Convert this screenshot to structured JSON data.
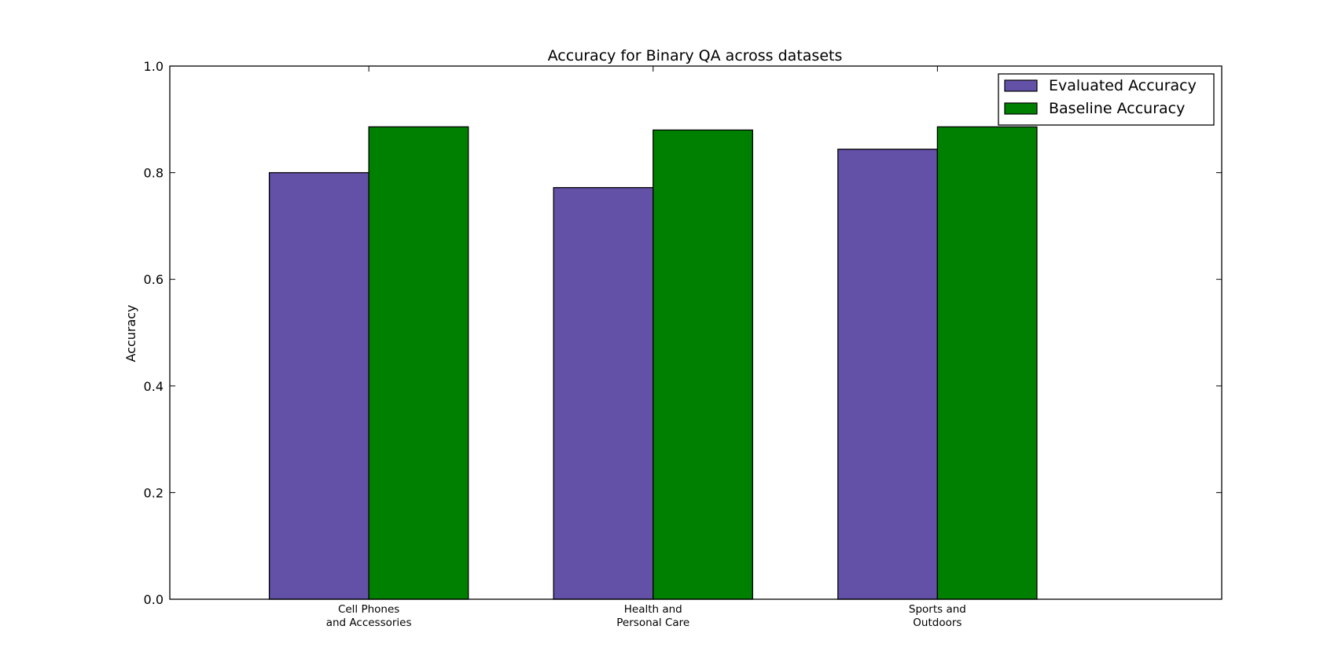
{
  "chart_data": {
    "type": "bar",
    "title": "Accuracy for Binary QA across datasets",
    "xlabel": "",
    "ylabel": "Accuracy",
    "ylim": [
      0,
      1
    ],
    "yticks": [
      "0.0",
      "0.2",
      "0.4",
      "0.6",
      "0.8",
      "1.0"
    ],
    "categories": [
      [
        "Cell Phones",
        "and Accessories"
      ],
      [
        "Health and",
        "Personal Care"
      ],
      [
        "Sports and",
        "Outdoors"
      ]
    ],
    "series": [
      {
        "name": "Evaluated Accuracy",
        "color": "#6351a8",
        "values": [
          0.8,
          0.772,
          0.844
        ]
      },
      {
        "name": "Baseline Accuracy",
        "color": "#008000",
        "values": [
          0.886,
          0.88,
          0.886
        ]
      }
    ],
    "legend": "top-right",
    "grid": false
  }
}
